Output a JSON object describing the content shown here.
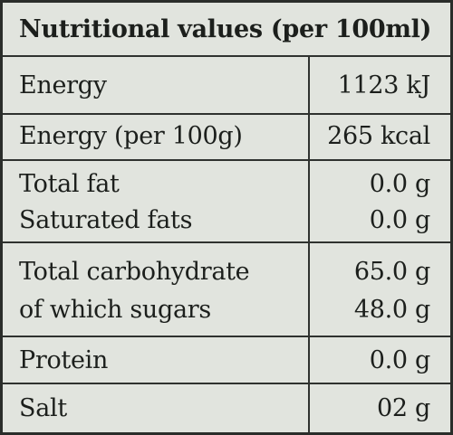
{
  "title": "Nutritional values (per 100ml)",
  "rows": [
    {
      "label": "Energy",
      "value": "1123 kJ"
    },
    {
      "label": "Energy (per 100g)",
      "value": "265 kcal"
    },
    {
      "label": "Total fat",
      "value": "0.0 g",
      "sub_label": "Saturated fats",
      "sub_value": "0.0 g"
    },
    {
      "label": "Total carbohydrate",
      "value": "65.0 g",
      "sub_label": "of which sugars",
      "sub_value": "48.0 g"
    },
    {
      "label": "Protein",
      "value": "0.0 g"
    },
    {
      "label": "Salt",
      "value": "02 g"
    }
  ]
}
